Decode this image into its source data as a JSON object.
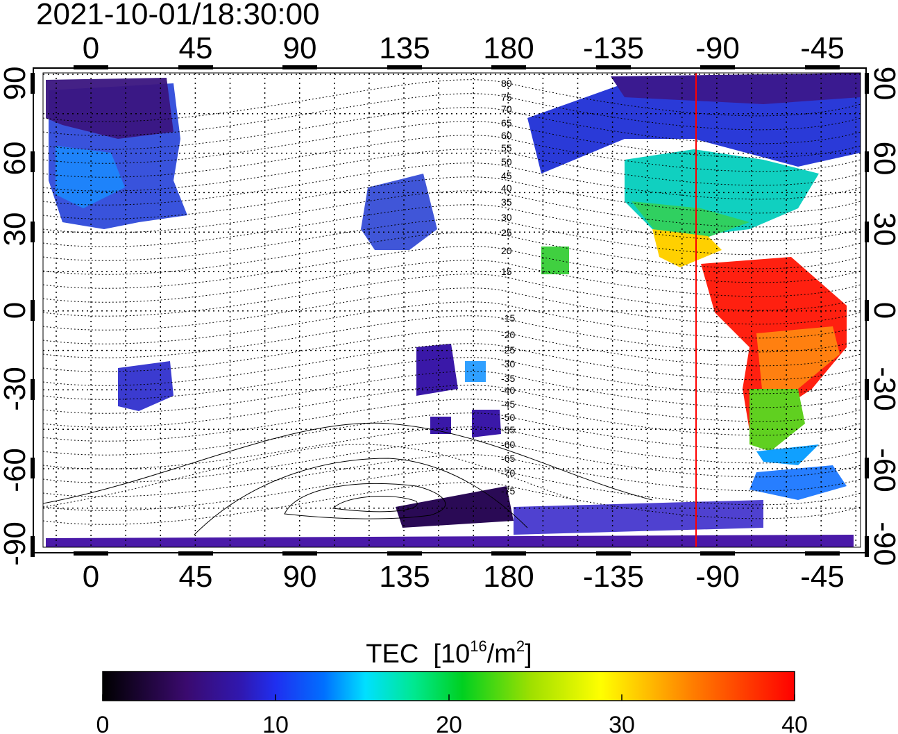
{
  "timestamp": "2021-10-01/18:30:00",
  "map": {
    "x_ticks": [
      "0",
      "45",
      "90",
      "135",
      "180",
      "-135",
      "-90",
      "-45"
    ],
    "y_ticks": [
      "90",
      "60",
      "30",
      "0",
      "-30",
      "-60",
      "-90"
    ],
    "magnetic_latitude_labels": [
      "80",
      "75",
      "70",
      "65",
      "60",
      "55",
      "50",
      "45",
      "40",
      "35",
      "30",
      "25",
      "20",
      "15",
      "-15",
      "-20",
      "-25",
      "-30",
      "-35",
      "-40",
      "-45",
      "-50",
      "-55",
      "-60",
      "-65",
      "-70",
      "-75"
    ],
    "highlight_longitude_deg": -95,
    "highlight_color": "#ff0000"
  },
  "colorbar": {
    "title_prefix": "TEC",
    "unit_base": "[10",
    "unit_exp1": "16",
    "unit_mid": "/m",
    "unit_exp2": "2",
    "unit_close": "]",
    "ticks": [
      "0",
      "10",
      "20",
      "30",
      "40"
    ],
    "range": [
      0,
      40
    ],
    "colors": [
      "#000000",
      "#3a0a6e",
      "#2b2bd8",
      "#0060ff",
      "#00ffff",
      "#00e060",
      "#ffff00",
      "#ff8000",
      "#ff0000"
    ]
  }
}
